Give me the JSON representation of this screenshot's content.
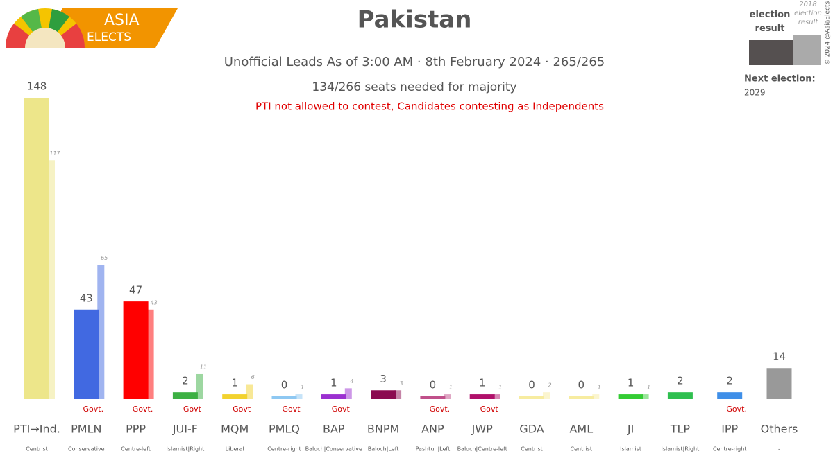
{
  "logo": {
    "line1": "ASIA",
    "line2": "ELECTS"
  },
  "credit": "© 2024 @AsiaElects",
  "chart_data": {
    "type": "bar",
    "title": "Pakistan",
    "subtitle": "Unofficial Leads As of 3:00 AM · 8th February 2024 · 265/265",
    "majority": "134/266 seats needed for majority",
    "note": "PTI not allowed to contest, Candidates contesting as Independents",
    "next_election_label": "Next election:",
    "next_election": "2029",
    "categories": [
      "PTI→Ind.",
      "PMLN",
      "PPP",
      "JUI-F",
      "MQM",
      "PMLQ",
      "BAP",
      "BNPM",
      "ANP",
      "JWP",
      "GDA",
      "AML",
      "JI",
      "TLP",
      "IPP",
      "Others"
    ],
    "ideologies": [
      "Centrist",
      "Conservative",
      "Centre-left",
      "Islamist|Right",
      "Liberal",
      "Centre-right",
      "Baloch|Conservative",
      "Baloch|Left",
      "Pashtun|Left",
      "Baloch|Centre-left",
      "Centrist",
      "Centrist",
      "Islamist",
      "Islamist|Right",
      "Centre-right",
      "-"
    ],
    "govt": [
      null,
      "Govt.",
      "Govt.",
      "Govt",
      "Govt",
      "Govt",
      "Govt",
      null,
      "Govt.",
      "Govt",
      null,
      null,
      null,
      null,
      "Govt.",
      null
    ],
    "colors": [
      "#ede68a",
      "#4169e1",
      "#ff0000",
      "#3cb043",
      "#f2d22e",
      "#8ec8f2",
      "#9b30d0",
      "#8b0a50",
      "#c0508a",
      "#b0106a",
      "#f7eca0",
      "#f7eca0",
      "#33cc33",
      "#2fbf4f",
      "#3f8fe8",
      "#999999"
    ],
    "series": [
      {
        "name": "election result",
        "values": [
          148,
          43,
          47,
          2,
          1,
          0,
          1,
          3,
          0,
          1,
          0,
          0,
          1,
          2,
          2,
          14
        ]
      },
      {
        "name": "2018 election result",
        "values": [
          117,
          65,
          43,
          11,
          6,
          1,
          4,
          3,
          1,
          1,
          2,
          1,
          1,
          null,
          null,
          null
        ]
      }
    ]
  }
}
